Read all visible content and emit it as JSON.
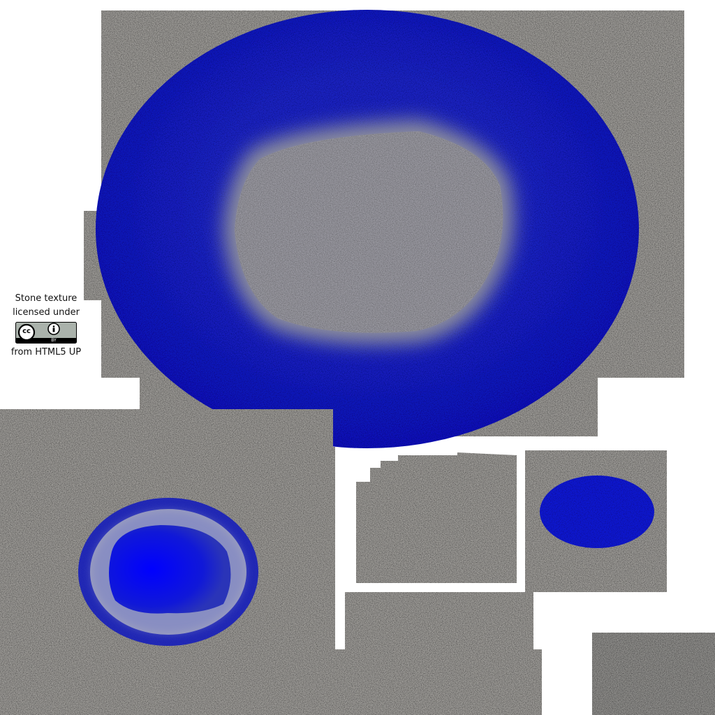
{
  "credit": {
    "line1": "Stone texture",
    "line2": "licensed under",
    "line3": "from HTML5 UP",
    "license_badge": {
      "icon": "cc-by-license-badge",
      "cc_label": "cc",
      "by_label": "BY"
    }
  },
  "colors": {
    "stone": "#9a9894",
    "stone_dark": "#7c7a77",
    "stone_light": "#b7b5b1",
    "water_blue": "#0a14c8",
    "water_bright": "#0000ff",
    "background": "#ffffff"
  }
}
